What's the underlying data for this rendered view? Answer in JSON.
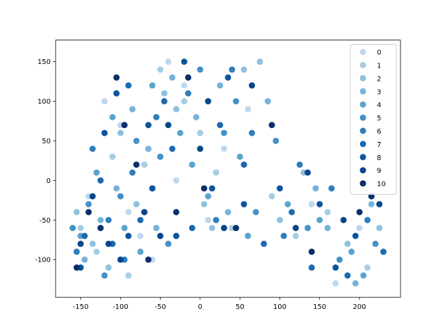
{
  "chart_data": {
    "type": "scatter",
    "xlim": [
      -181.4,
      251.5
    ],
    "ylim": [
      -147.5,
      177.3
    ],
    "xticks": [
      -150,
      -100,
      -50,
      0,
      50,
      100,
      150,
      200
    ],
    "yticks": [
      -100,
      -50,
      0,
      50,
      100,
      150
    ],
    "legend": "upper right",
    "series": [
      {
        "name": "0",
        "color": "#bdd7ee",
        "x": [
          -120,
          -90,
          -40,
          -20,
          10,
          60,
          -140,
          -100,
          -60,
          170,
          140,
          200,
          -30,
          30,
          -75
        ],
        "values": [
          100,
          -40,
          150,
          120,
          -50,
          90,
          -20,
          70,
          -100,
          -130,
          -30,
          -60,
          0,
          40,
          -70
        ]
      },
      {
        "name": "1",
        "color": "#a5cde3",
        "x": [
          -150,
          -110,
          -70,
          -50,
          0,
          40,
          90,
          120,
          210,
          -130,
          -20,
          20,
          -90,
          160,
          -60
        ],
        "values": [
          -60,
          30,
          20,
          140,
          60,
          -60,
          -20,
          -70,
          -110,
          -90,
          100,
          10,
          -120,
          -40,
          -10
        ]
      },
      {
        "name": "2",
        "color": "#8fc1de",
        "x": [
          -135,
          -100,
          -80,
          -45,
          5,
          55,
          75,
          130,
          185,
          225,
          -155,
          -30,
          15,
          -115,
          100
        ],
        "values": [
          -80,
          60,
          -30,
          110,
          -30,
          140,
          150,
          10,
          -80,
          -60,
          -40,
          90,
          -60,
          -110,
          -50
        ]
      },
      {
        "name": "3",
        "color": "#75b4d8",
        "x": [
          -145,
          -105,
          -65,
          -35,
          -5,
          35,
          85,
          145,
          195,
          -125,
          -85,
          25,
          160,
          215,
          -55
        ],
        "values": [
          -100,
          -10,
          40,
          130,
          80,
          -40,
          100,
          -10,
          -130,
          -50,
          90,
          120,
          -60,
          -30,
          -60
        ]
      },
      {
        "name": "4",
        "color": "#5ba3cf",
        "x": [
          -130,
          -95,
          -60,
          -25,
          10,
          50,
          110,
          150,
          190,
          -150,
          -75,
          -10,
          60,
          205,
          -110
        ],
        "values": [
          10,
          -60,
          120,
          60,
          -20,
          30,
          -30,
          -50,
          -90,
          -70,
          -90,
          20,
          -70,
          -120,
          80
        ]
      },
      {
        "name": "5",
        "color": "#4292c6",
        "x": [
          -140,
          -120,
          -80,
          -40,
          0,
          45,
          95,
          135,
          175,
          220,
          -100,
          -50,
          30,
          -160,
          70
        ],
        "values": [
          -30,
          -120,
          50,
          -80,
          140,
          100,
          50,
          -60,
          -100,
          -80,
          -20,
          30,
          60,
          -60,
          -40
        ]
      },
      {
        "name": "6",
        "color": "#2e7ebc",
        "x": [
          -155,
          -115,
          -85,
          -55,
          -15,
          20,
          65,
          125,
          165,
          210,
          -135,
          -70,
          40,
          -95,
          105
        ],
        "values": [
          -90,
          -50,
          10,
          80,
          110,
          -50,
          60,
          20,
          -10,
          -50,
          40,
          -40,
          140,
          -100,
          -70
        ]
      },
      {
        "name": "7",
        "color": "#1c6aaf",
        "x": [
          -145,
          -110,
          -75,
          -45,
          -10,
          25,
          80,
          115,
          185,
          230,
          -125,
          -90,
          55,
          140,
          -35
        ],
        "values": [
          -70,
          -80,
          -50,
          100,
          -60,
          70,
          -80,
          -40,
          -120,
          -90,
          0,
          120,
          20,
          -110,
          40
        ]
      },
      {
        "name": "8",
        "color": "#0b559f",
        "x": [
          -150,
          -120,
          -90,
          -60,
          -20,
          15,
          55,
          100,
          150,
          195,
          -105,
          -65,
          35,
          170,
          -30
        ],
        "values": [
          -110,
          60,
          -70,
          -10,
          150,
          -10,
          -30,
          -10,
          -30,
          -70,
          110,
          70,
          130,
          -110,
          -70
        ]
      },
      {
        "name": "9",
        "color": "#08468b",
        "x": [
          -135,
          -100,
          -70,
          -40,
          0,
          30,
          65,
          120,
          180,
          225,
          -115,
          -50,
          10,
          135,
          -150
        ],
        "values": [
          -20,
          -100,
          -40,
          70,
          40,
          -60,
          120,
          -60,
          -50,
          -30,
          -80,
          -70,
          100,
          10,
          -80
        ]
      },
      {
        "name": "10",
        "color": "#08306b",
        "x": [
          -155,
          -125,
          -95,
          -65,
          -30,
          5,
          45,
          90,
          140,
          200,
          -140,
          -80,
          -15,
          215,
          -105
        ],
        "values": [
          -110,
          -60,
          70,
          -100,
          -40,
          -10,
          -60,
          70,
          -90,
          -40,
          -40,
          20,
          130,
          -20,
          130
        ]
      }
    ]
  }
}
